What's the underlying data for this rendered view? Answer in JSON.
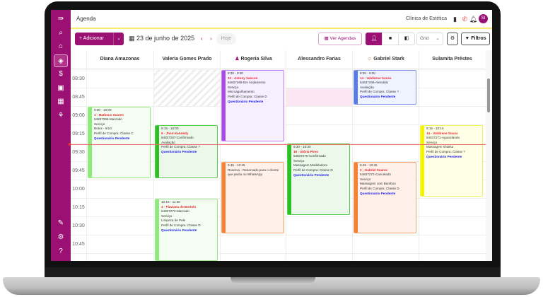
{
  "app": {
    "title": "Agenda",
    "clinic": "Clínica de Estética",
    "avatar_initials": "SI"
  },
  "colors": {
    "brand": "#9b1173",
    "now_line": "#f06a6a"
  },
  "sidebar": {
    "items": [
      {
        "icon": "menu-expand-icon",
        "glyph": "⇛"
      },
      {
        "icon": "search-icon",
        "glyph": "⌕"
      },
      {
        "icon": "home-icon",
        "glyph": "⌂"
      },
      {
        "icon": "layers-icon",
        "glyph": "◈",
        "active": true
      },
      {
        "icon": "dollar-icon",
        "glyph": "$"
      },
      {
        "icon": "archive-icon",
        "glyph": "▣"
      },
      {
        "icon": "grid-icon",
        "glyph": "▦"
      },
      {
        "icon": "hand-chart-icon",
        "glyph": "⚘"
      }
    ],
    "bottom": [
      {
        "icon": "pencil-icon",
        "glyph": "✎"
      },
      {
        "icon": "gear-icon",
        "glyph": "⚙"
      },
      {
        "icon": "help-icon",
        "glyph": "?"
      }
    ]
  },
  "toolbar": {
    "add_label": "+ Adicionar",
    "date": "23 de junho de 2025",
    "today": "Hoje",
    "ver_agendas": "Ver Agendas",
    "view_select": "Grid",
    "filters": "Filtros"
  },
  "columns": [
    "Diana Amazonas",
    "Valeria Gomes Prado",
    "Rogeria Silva",
    "Alessandro Farias",
    "Gabriel Stark",
    "Sulamita Préstes"
  ],
  "times": [
    "08:30",
    "08:45",
    "09:00",
    "09:15",
    "09:30",
    "09:45",
    "10:00",
    "10:15",
    "10:30",
    "10:45"
  ],
  "events": [
    {
      "col": 0,
      "time": "9:00 - 10:00",
      "name": "1 - Matheus Soares",
      "lines": [
        "54837266-Marcado",
        "Serviço",
        "Botox - 6/10",
        "Perfil de Compra: Classe C"
      ],
      "q": "Questionário Pendente",
      "bg": "#f3fdf1",
      "border": "#9be889",
      "strip": "#8ceb7a"
    },
    {
      "col": 1,
      "time": "9:15 - 10:00",
      "name": "9 - Jhon Kennedy",
      "lines": [
        "54837267-Confirmado",
        "Avaliação",
        "Perfil de Compra: Classe ?"
      ],
      "q": "Questionário Pendente",
      "bg": "#ebf8ea",
      "border": "#53cc48",
      "strip": "#2ec027"
    },
    {
      "col": 1,
      "time": "10:15 - 11:30",
      "name": "4 - Flaviana de Bortolo",
      "lines": [
        "54837273-Marcado",
        "Serviço",
        "Limpeza de Pele",
        "Perfil de Compra: Classe D"
      ],
      "q": "Questionário Pendente",
      "bg": "#f3fdf1",
      "border": "#9be889",
      "strip": "#8ceb7a"
    },
    {
      "col": 2,
      "time": "8:30 - 9:30",
      "name": "12 - Antony Vancon",
      "lines": [
        "54837268-Em Andamento",
        "Serviço",
        "Microagulhamento",
        "Perfil de Compra: Classe D"
      ],
      "q": "Questionário Pendente",
      "bg": "#f6efff",
      "border": "#c07df0",
      "strip": "#a94be6"
    },
    {
      "col": 2,
      "time": "9:45 - 10:45",
      "name": "",
      "lines": [
        "Reserva - Reservado para o cliente que pediu no WhatsApp"
      ],
      "q": "",
      "bg": "#fff1ea",
      "border": "#f5a46e",
      "strip": "#f58234"
    },
    {
      "col": 3,
      "time": "9:30 - 10:30",
      "name": "19 - Glória Pires",
      "lines": [
        "54837270-Confirmado",
        "Serviço",
        "Massagem Modeladora",
        "Perfil de Compra: Classe D"
      ],
      "q": "Questionário Pendente",
      "bg": "#ebf8ea",
      "border": "#53cc48",
      "strip": "#2ec027"
    },
    {
      "col": 4,
      "time": "8:30 - 9:00",
      "name": "14 - Valdirene Souza",
      "lines": [
        "54837269-Atendido",
        "Avaliação",
        "Perfil de Compra: Classe ?"
      ],
      "q": "Questionário Pendente",
      "bg": "#eef3ff",
      "border": "#7d97ea",
      "strip": "#5a7be0"
    },
    {
      "col": 4,
      "time": "9:45 - 10:45",
      "name": "2 - Gabriel Soares",
      "lines": [
        "54837272-Cancelado",
        "Serviço",
        "Massagem com Bamboo",
        "Perfil de Compra: Classe D"
      ],
      "q": "Questionário Pendente",
      "bg": "#fff1ea",
      "border": "#f5a46e",
      "strip": "#f58234"
    },
    {
      "col": 5,
      "time": "9:15 - 10:15",
      "name": "14 - Valdirene Souza",
      "lines": [
        "54837271-Aguardando",
        "Serviço",
        "Massagem shiatsu",
        "Perfil de Compra: Classe ?"
      ],
      "q": "Questionário Pendente",
      "bg": "#ffffe6",
      "border": "#f2f25a",
      "strip": "#f5f500"
    }
  ]
}
